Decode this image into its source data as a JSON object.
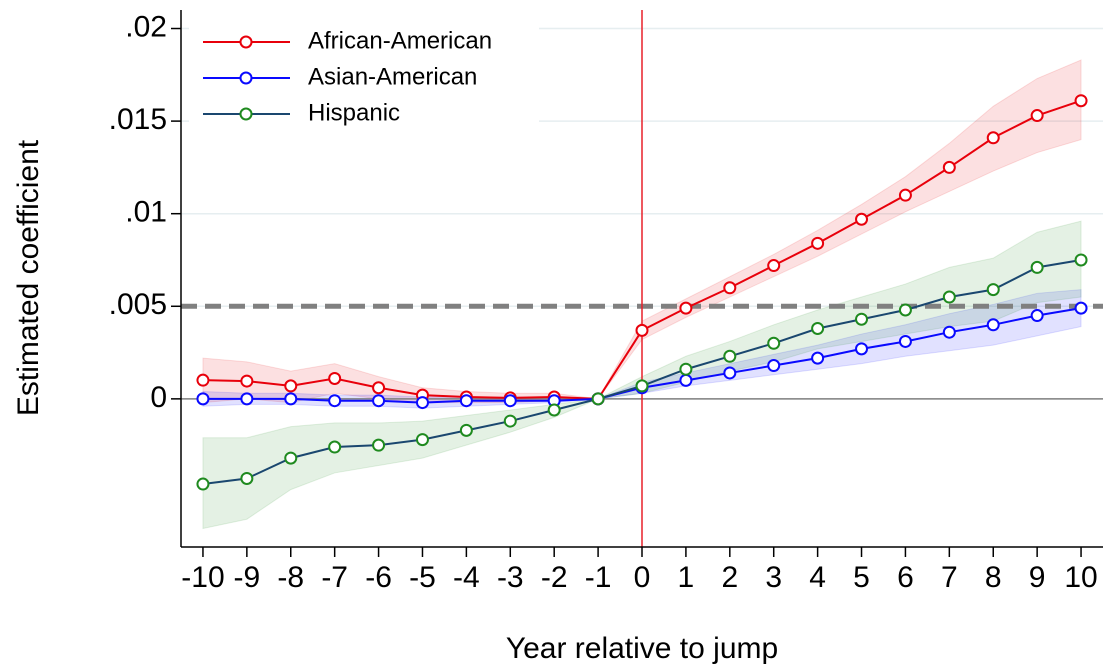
{
  "chart_data": {
    "type": "line",
    "xlabel": "Year relative to jump",
    "ylabel": "Estimated coefficient",
    "x": [
      -10,
      -9,
      -8,
      -7,
      -6,
      -5,
      -4,
      -3,
      -2,
      -1,
      0,
      1,
      2,
      3,
      4,
      5,
      6,
      7,
      8,
      9,
      10
    ],
    "xlim": [
      -10.5,
      10.5
    ],
    "xticks": [
      -10,
      -9,
      -8,
      -7,
      -6,
      -5,
      -4,
      -3,
      -2,
      -1,
      0,
      1,
      2,
      3,
      4,
      5,
      6,
      7,
      8,
      9,
      10
    ],
    "ylim": [
      -0.008,
      0.021
    ],
    "yticks": [
      0,
      {
        "value": 0.005,
        "label": ".005"
      },
      {
        "value": 0.01,
        "label": ".01"
      },
      {
        "value": 0.015,
        "label": ".015"
      },
      {
        "value": 0.02,
        "label": ".02"
      }
    ],
    "grid": true,
    "legend": "top-left",
    "reference_lines": [
      {
        "axis": "y",
        "value": 0,
        "color": "#808080",
        "style": "solid"
      },
      {
        "axis": "y",
        "value": 0.005,
        "color": "#808080",
        "style": "dashed"
      },
      {
        "axis": "x",
        "value": 0,
        "color": "#e8202a",
        "style": "solid"
      }
    ],
    "series": [
      {
        "name": "African-American",
        "color": "#e8000b",
        "marker_color": "#e8000b",
        "values": [
          0.00101,
          0.00096,
          0.0007,
          0.0011,
          0.0006,
          0.0002,
          0.0001,
          5e-05,
          0.0001,
          0,
          0.0037,
          0.0049,
          0.006,
          0.0072,
          0.0084,
          0.0097,
          0.011,
          0.0125,
          0.0141,
          0.0153,
          0.0161
        ],
        "upper": [
          0.0022,
          0.002,
          0.0015,
          0.0019,
          0.0012,
          0.0006,
          0.0004,
          0.0003,
          0.0003,
          0,
          0.0042,
          0.0054,
          0.0066,
          0.0078,
          0.0091,
          0.0105,
          0.012,
          0.0138,
          0.0158,
          0.0173,
          0.0183
        ],
        "lower": [
          -0.0002,
          0,
          -0.0002,
          0.0003,
          0,
          -0.0002,
          -0.0002,
          -0.0002,
          -0.0001,
          0,
          0.0032,
          0.0044,
          0.0055,
          0.0066,
          0.0077,
          0.0089,
          0.0101,
          0.0112,
          0.0123,
          0.0133,
          0.014
        ]
      },
      {
        "name": "Asian-American",
        "color": "#0a0aff",
        "marker_color": "#0a0aff",
        "values": [
          0,
          0,
          0,
          -0.0001,
          -0.0001,
          -0.0002,
          -0.0001,
          -0.0001,
          -0.0001,
          0,
          0.0006,
          0.001,
          0.0014,
          0.0018,
          0.0022,
          0.0027,
          0.0031,
          0.0036,
          0.004,
          0.0045,
          0.0049
        ],
        "upper": [
          0.0004,
          0.0003,
          0.0003,
          0.0002,
          0.0002,
          0.0001,
          0.0001,
          0.0001,
          0.0001,
          0,
          0.0009,
          0.0014,
          0.0019,
          0.0024,
          0.0029,
          0.0035,
          0.004,
          0.0046,
          0.0051,
          0.0057,
          0.0059
        ],
        "lower": [
          -0.0004,
          -0.0003,
          -0.0003,
          -0.0004,
          -0.0004,
          -0.0005,
          -0.0004,
          -0.0003,
          -0.0002,
          0,
          0.0003,
          0.0007,
          0.001,
          0.0013,
          0.0016,
          0.0019,
          0.0023,
          0.0026,
          0.0029,
          0.0034,
          0.0039
        ]
      },
      {
        "name": "Hispanic",
        "color": "#1a476f",
        "marker_color": "#1f8a1f",
        "values": [
          -0.0046,
          -0.0043,
          -0.0032,
          -0.0026,
          -0.0025,
          -0.0022,
          -0.0017,
          -0.0012,
          -0.0006,
          0,
          0.0007,
          0.0016,
          0.0023,
          0.003,
          0.0038,
          0.0043,
          0.0048,
          0.0055,
          0.0059,
          0.0071,
          0.0075
        ],
        "upper": [
          -0.0021,
          -0.0021,
          -0.0015,
          -0.0013,
          -0.0013,
          -0.0012,
          -0.0009,
          -0.0006,
          -0.0003,
          0,
          0.0012,
          0.0023,
          0.0031,
          0.004,
          0.0048,
          0.0055,
          0.0062,
          0.0071,
          0.0076,
          0.009,
          0.0096
        ],
        "lower": [
          -0.007,
          -0.0065,
          -0.0049,
          -0.004,
          -0.0036,
          -0.0032,
          -0.0025,
          -0.0018,
          -0.001,
          0,
          0.0003,
          0.0009,
          0.0015,
          0.002,
          0.0027,
          0.0031,
          0.0035,
          0.0039,
          0.0042,
          0.0052,
          0.0055
        ]
      }
    ]
  }
}
